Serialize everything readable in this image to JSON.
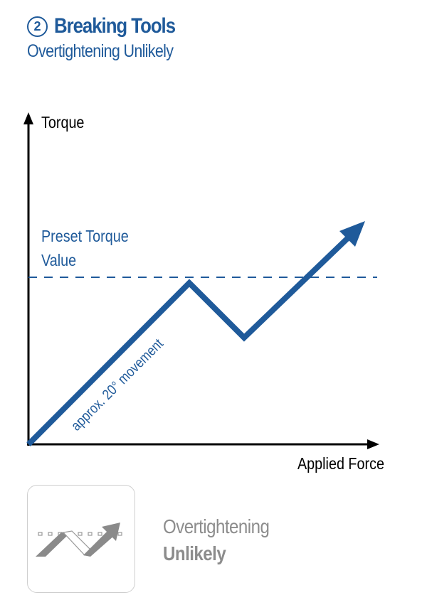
{
  "header": {
    "step_number": "2",
    "title": "Breaking Tools",
    "subtitle": "Overtightening Unlikely"
  },
  "chart_data": {
    "type": "line",
    "ylabel": "Torque",
    "xlabel": "Applied Force",
    "reference_line": {
      "label_line1": "Preset Torque",
      "label_line2": "Value"
    },
    "annotation": "approx. 20° movement",
    "colors": {
      "line": "#1f5a9a",
      "axis": "#000000"
    }
  },
  "status": {
    "line1": "Overtightening",
    "line2": "Unlikely",
    "icon": "breaking-tool-icon"
  }
}
